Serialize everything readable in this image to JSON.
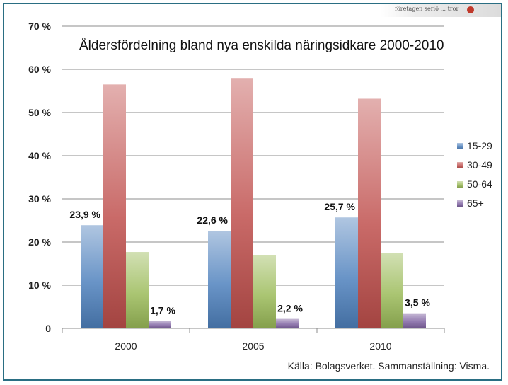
{
  "chart_data": {
    "type": "bar",
    "title": "Åldersfördelning bland nya enskilda näringsidkare 2000-2010",
    "categories": [
      "2000",
      "2005",
      "2010"
    ],
    "series": [
      {
        "name": "15-29",
        "values": [
          23.9,
          22.6,
          25.7
        ],
        "color": "#4f81bd",
        "labels": [
          "23,9 %",
          "22,6 %",
          "25,7 %"
        ]
      },
      {
        "name": "30-49",
        "values": [
          56.5,
          58.0,
          53.2
        ],
        "color": "#c0504d",
        "labels": [
          "",
          "",
          ""
        ]
      },
      {
        "name": "50-64",
        "values": [
          17.7,
          16.9,
          17.5
        ],
        "color": "#9bbb59",
        "labels": [
          "",
          "",
          ""
        ]
      },
      {
        "name": "65+",
        "values": [
          1.7,
          2.2,
          3.5
        ],
        "color": "#8064a2",
        "labels": [
          "1,7 %",
          "2,2 %",
          "3,5 %"
        ]
      }
    ],
    "yticks": [
      {
        "value": 0,
        "label": "0"
      },
      {
        "value": 10,
        "label": "10 %"
      },
      {
        "value": 20,
        "label": "20 %"
      },
      {
        "value": 30,
        "label": "30 %"
      },
      {
        "value": 40,
        "label": "40 %"
      },
      {
        "value": 50,
        "label": "50 %"
      },
      {
        "value": 60,
        "label": "60 %"
      },
      {
        "value": 70,
        "label": "70 %"
      }
    ],
    "ylim": [
      0,
      70
    ],
    "grid": true,
    "legend_position": "right",
    "source": "Källa: Bolagsverket. Sammanställning: Visma."
  },
  "corner_scan_text": "företagen  seriö  ... tror"
}
